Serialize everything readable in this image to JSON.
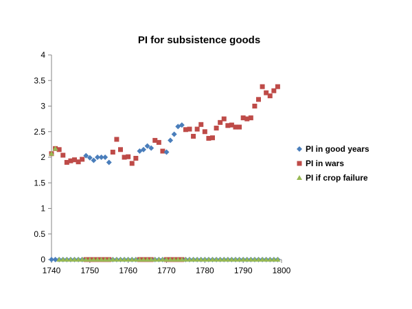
{
  "chart_data": {
    "type": "scatter",
    "title": "PI for subsistence goods",
    "xlabel": "",
    "ylabel": "",
    "xlim": [
      1740,
      1800
    ],
    "ylim": [
      0,
      4
    ],
    "xticks": [
      1740,
      1750,
      1760,
      1770,
      1780,
      1790,
      1800
    ],
    "yticks": [
      0,
      0.5,
      1,
      1.5,
      2,
      2.5,
      3,
      3.5,
      4
    ],
    "ytick_labels": [
      "0",
      "0.5",
      "1",
      "1.5",
      "2",
      "2.5",
      "3",
      "3.5",
      "4"
    ],
    "grid": "none",
    "legend_position": "right",
    "series": [
      {
        "name": "PI in good years",
        "marker": "diamond",
        "color": "#4a7ebb",
        "points": [
          [
            1740,
            0
          ],
          [
            1741,
            0
          ],
          [
            1742,
            0
          ],
          [
            1743,
            0
          ],
          [
            1744,
            0
          ],
          [
            1745,
            0
          ],
          [
            1746,
            0
          ],
          [
            1747,
            0
          ],
          [
            1748,
            0
          ],
          [
            1749,
            2.03
          ],
          [
            1750,
            1.99
          ],
          [
            1751,
            1.94
          ],
          [
            1752,
            2.0
          ],
          [
            1753,
            2.0
          ],
          [
            1754,
            2.0
          ],
          [
            1755,
            1.9
          ],
          [
            1756,
            0
          ],
          [
            1757,
            0
          ],
          [
            1758,
            0
          ],
          [
            1759,
            0
          ],
          [
            1760,
            0
          ],
          [
            1761,
            0
          ],
          [
            1762,
            0
          ],
          [
            1763,
            2.12
          ],
          [
            1764,
            2.15
          ],
          [
            1765,
            2.22
          ],
          [
            1766,
            2.18
          ],
          [
            1767,
            0
          ],
          [
            1768,
            0
          ],
          [
            1769,
            0
          ],
          [
            1770,
            2.1
          ],
          [
            1771,
            2.33
          ],
          [
            1772,
            2.45
          ],
          [
            1773,
            2.6
          ],
          [
            1774,
            2.63
          ],
          [
            1775,
            0
          ],
          [
            1776,
            0
          ],
          [
            1777,
            0
          ],
          [
            1778,
            0
          ],
          [
            1779,
            0
          ],
          [
            1780,
            0
          ],
          [
            1781,
            0
          ],
          [
            1782,
            0
          ],
          [
            1783,
            0
          ],
          [
            1784,
            0
          ],
          [
            1785,
            0
          ],
          [
            1786,
            0
          ],
          [
            1787,
            0
          ],
          [
            1788,
            0
          ],
          [
            1789,
            0
          ],
          [
            1790,
            0
          ],
          [
            1791,
            0
          ],
          [
            1792,
            0
          ],
          [
            1793,
            0
          ],
          [
            1794,
            0
          ],
          [
            1795,
            0
          ],
          [
            1796,
            0
          ],
          [
            1797,
            0
          ],
          [
            1798,
            0
          ],
          [
            1799,
            0
          ]
        ]
      },
      {
        "name": "PI in wars",
        "marker": "square",
        "color": "#be4b48",
        "points": [
          [
            1740,
            2.07
          ],
          [
            1741,
            2.17
          ],
          [
            1742,
            2.15
          ],
          [
            1743,
            2.04
          ],
          [
            1744,
            1.9
          ],
          [
            1745,
            1.93
          ],
          [
            1746,
            1.95
          ],
          [
            1747,
            1.91
          ],
          [
            1748,
            1.96
          ],
          [
            1749,
            0
          ],
          [
            1750,
            0
          ],
          [
            1751,
            0
          ],
          [
            1752,
            0
          ],
          [
            1753,
            0
          ],
          [
            1754,
            0
          ],
          [
            1755,
            0
          ],
          [
            1756,
            2.1
          ],
          [
            1757,
            2.35
          ],
          [
            1758,
            2.15
          ],
          [
            1759,
            2.0
          ],
          [
            1760,
            2.01
          ],
          [
            1761,
            1.88
          ],
          [
            1762,
            1.98
          ],
          [
            1763,
            0
          ],
          [
            1764,
            0
          ],
          [
            1765,
            0
          ],
          [
            1766,
            0
          ],
          [
            1767,
            2.33
          ],
          [
            1768,
            2.29
          ],
          [
            1769,
            2.12
          ],
          [
            1770,
            0
          ],
          [
            1771,
            0
          ],
          [
            1772,
            0
          ],
          [
            1773,
            0
          ],
          [
            1774,
            0
          ],
          [
            1775,
            2.54
          ],
          [
            1776,
            2.55
          ],
          [
            1777,
            2.41
          ],
          [
            1778,
            2.55
          ],
          [
            1779,
            2.64
          ],
          [
            1780,
            2.5
          ],
          [
            1781,
            2.37
          ],
          [
            1782,
            2.38
          ],
          [
            1783,
            2.57
          ],
          [
            1784,
            2.68
          ],
          [
            1785,
            2.75
          ],
          [
            1786,
            2.62
          ],
          [
            1787,
            2.63
          ],
          [
            1788,
            2.59
          ],
          [
            1789,
            2.59
          ],
          [
            1790,
            2.77
          ],
          [
            1791,
            2.75
          ],
          [
            1792,
            2.77
          ],
          [
            1793,
            3.0
          ],
          [
            1794,
            3.13
          ],
          [
            1795,
            3.38
          ],
          [
            1796,
            3.26
          ],
          [
            1797,
            3.2
          ],
          [
            1798,
            3.3
          ],
          [
            1799,
            3.38
          ]
        ]
      },
      {
        "name": "PI if crop failure",
        "marker": "triangle",
        "color": "#98b954",
        "points": [
          [
            1740,
            2.07
          ],
          [
            1741,
            2.17
          ],
          [
            1742,
            0
          ],
          [
            1743,
            0
          ],
          [
            1744,
            0
          ],
          [
            1745,
            0
          ],
          [
            1746,
            0
          ],
          [
            1747,
            0
          ],
          [
            1748,
            0
          ],
          [
            1749,
            0
          ],
          [
            1750,
            0
          ],
          [
            1751,
            0
          ],
          [
            1752,
            0
          ],
          [
            1753,
            0
          ],
          [
            1754,
            0
          ],
          [
            1755,
            0
          ],
          [
            1756,
            0
          ],
          [
            1757,
            0
          ],
          [
            1758,
            0
          ],
          [
            1759,
            0
          ],
          [
            1760,
            0
          ],
          [
            1761,
            0
          ],
          [
            1762,
            0
          ],
          [
            1763,
            0
          ],
          [
            1764,
            0
          ],
          [
            1765,
            0
          ],
          [
            1766,
            0
          ],
          [
            1767,
            0
          ],
          [
            1768,
            0
          ],
          [
            1769,
            0
          ],
          [
            1770,
            0
          ],
          [
            1771,
            0
          ],
          [
            1772,
            0
          ],
          [
            1773,
            0
          ],
          [
            1774,
            0
          ],
          [
            1775,
            0
          ],
          [
            1776,
            0
          ],
          [
            1777,
            0
          ],
          [
            1778,
            0
          ],
          [
            1779,
            0
          ],
          [
            1780,
            0
          ],
          [
            1781,
            0
          ],
          [
            1782,
            0
          ],
          [
            1783,
            0
          ],
          [
            1784,
            0
          ],
          [
            1785,
            0
          ],
          [
            1786,
            0
          ],
          [
            1787,
            0
          ],
          [
            1788,
            0
          ],
          [
            1789,
            0
          ],
          [
            1790,
            0
          ],
          [
            1791,
            0
          ],
          [
            1792,
            0
          ],
          [
            1793,
            0
          ],
          [
            1794,
            0
          ],
          [
            1795,
            0
          ],
          [
            1796,
            0
          ],
          [
            1797,
            0
          ],
          [
            1798,
            0
          ],
          [
            1799,
            0
          ]
        ]
      }
    ]
  }
}
